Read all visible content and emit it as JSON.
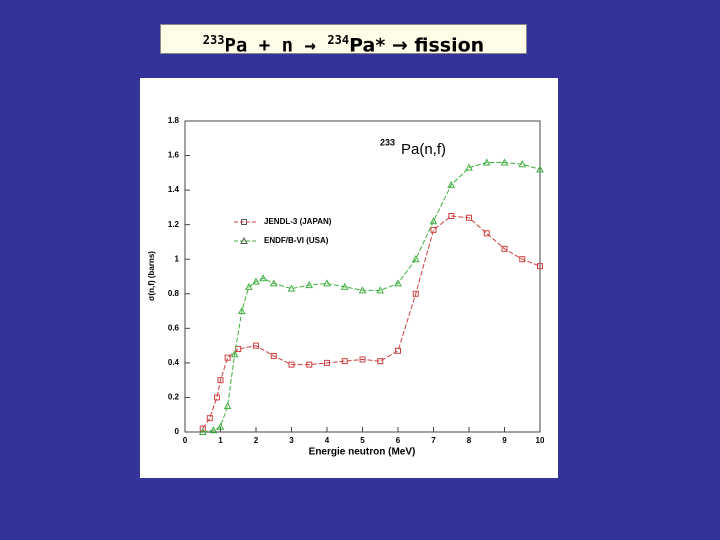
{
  "slide_title": {
    "mass1": "233",
    "text1": "Pa + n → ",
    "mass2": "234",
    "text2": "Pa* → fission"
  },
  "chart_data": {
    "type": "line",
    "annotation": {
      "mass": "233",
      "text": "Pa(n,f)"
    },
    "x_label": "Energie neutron (MeV)",
    "y_label": "σ(n,f) (barns)",
    "xlim": [
      0,
      10
    ],
    "xticks": [
      0,
      1,
      2,
      3,
      4,
      5,
      6,
      7,
      8,
      9,
      10
    ],
    "ylim": [
      0,
      1.8
    ],
    "yticks": [
      0,
      0.2,
      0.4,
      0.6,
      0.8,
      1,
      1.2,
      1.4,
      1.6,
      1.8
    ],
    "series": [
      {
        "name": "JENDL-3 (JAPAN)",
        "color": "#d04040",
        "marker": "square",
        "x": [
          0.5,
          0.7,
          0.9,
          1.0,
          1.2,
          1.5,
          2.0,
          2.5,
          3.0,
          3.5,
          4.0,
          4.5,
          5.0,
          5.5,
          6.0,
          6.5,
          7.0,
          7.5,
          8.0,
          8.5,
          9.0,
          9.5,
          10.0
        ],
        "values": [
          0.02,
          0.08,
          0.2,
          0.3,
          0.43,
          0.48,
          0.5,
          0.44,
          0.39,
          0.39,
          0.4,
          0.41,
          0.42,
          0.41,
          0.47,
          0.8,
          1.17,
          1.25,
          1.24,
          1.15,
          1.06,
          1.0,
          0.96
        ]
      },
      {
        "name": "ENDF/B-VI (USA)",
        "color": "#40b040",
        "marker": "triangle",
        "x": [
          0.5,
          0.8,
          1.0,
          1.2,
          1.4,
          1.6,
          1.8,
          2.0,
          2.2,
          2.5,
          3.0,
          3.5,
          4.0,
          4.5,
          5.0,
          5.5,
          6.0,
          6.5,
          7.0,
          7.5,
          8.0,
          8.5,
          9.0,
          9.5,
          10.0
        ],
        "values": [
          0,
          0.01,
          0.03,
          0.15,
          0.45,
          0.7,
          0.84,
          0.87,
          0.89,
          0.86,
          0.83,
          0.85,
          0.86,
          0.84,
          0.82,
          0.82,
          0.86,
          1.0,
          1.22,
          1.43,
          1.53,
          1.56,
          1.56,
          1.55,
          1.52
        ]
      }
    ]
  }
}
